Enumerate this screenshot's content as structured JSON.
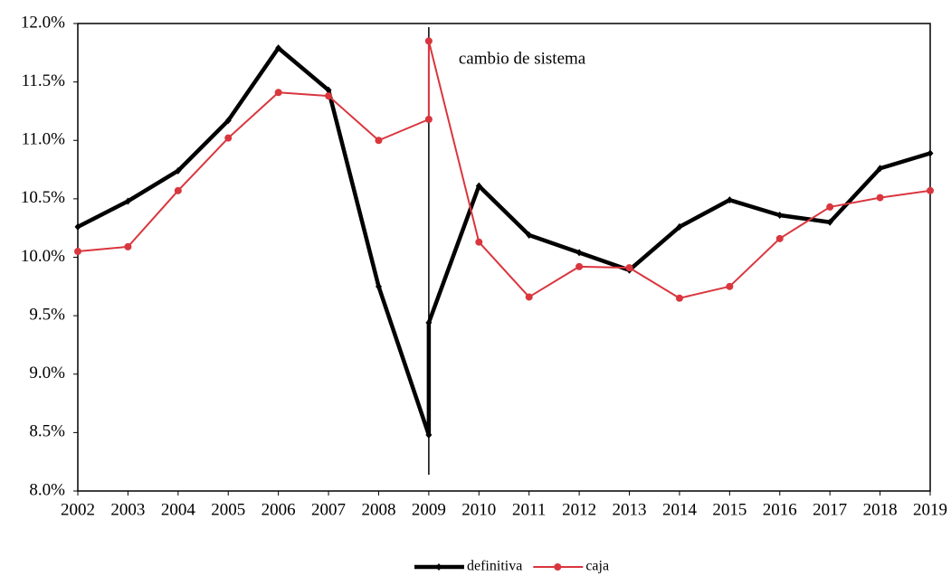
{
  "chart_data": {
    "type": "line",
    "x": [
      2002,
      2003,
      2004,
      2005,
      2006,
      2007,
      2008,
      2009,
      2009,
      2010,
      2011,
      2012,
      2013,
      2014,
      2015,
      2016,
      2017,
      2018,
      2019
    ],
    "series": [
      {
        "name": "definitiva",
        "color": "#000000",
        "values": [
          10.26,
          10.48,
          10.74,
          11.17,
          11.79,
          11.43,
          9.75,
          8.48,
          9.44,
          10.61,
          10.19,
          10.04,
          9.89,
          10.26,
          10.49,
          10.36,
          10.3,
          10.76,
          10.89
        ]
      },
      {
        "name": "caja",
        "color": "#d9363e",
        "values": [
          10.05,
          10.09,
          10.57,
          11.02,
          11.41,
          11.38,
          11.0,
          11.18,
          11.85,
          10.13,
          9.66,
          9.92,
          9.91,
          9.65,
          9.75,
          10.16,
          10.43,
          10.51,
          10.57
        ]
      }
    ],
    "xlim": [
      2002,
      2019
    ],
    "xticks": [
      2002,
      2003,
      2004,
      2005,
      2006,
      2007,
      2008,
      2009,
      2010,
      2011,
      2012,
      2013,
      2014,
      2015,
      2016,
      2017,
      2018,
      2019
    ],
    "ylim": [
      8,
      12
    ],
    "yticks": [
      {
        "value": 8,
        "label": "8.0%"
      },
      {
        "value": 8.5,
        "label": "8.5%"
      },
      {
        "value": 9,
        "label": "9.0%"
      },
      {
        "value": 9.5,
        "label": "9.5%"
      },
      {
        "value": 10,
        "label": "10.0%"
      },
      {
        "value": 10.5,
        "label": "10.5%"
      },
      {
        "value": 11,
        "label": "11.0%"
      },
      {
        "value": 11.5,
        "label": "11.5%"
      },
      {
        "value": 12,
        "label": "12.0%"
      }
    ],
    "annotation": {
      "text": "cambio de sistema",
      "x": 2009
    },
    "legend": "bottom"
  }
}
